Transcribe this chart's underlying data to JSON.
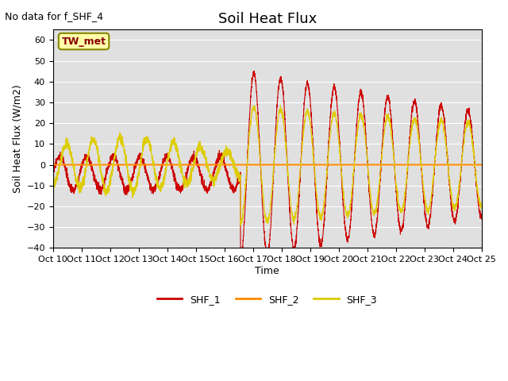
{
  "title": "Soil Heat Flux",
  "ylabel": "Soil Heat Flux (W/m2)",
  "xlabel": "Time",
  "annotation_text": "No data for f_SHF_4",
  "box_label": "TW_met",
  "ylim": [
    -40,
    65
  ],
  "yticks": [
    -40,
    -30,
    -20,
    -10,
    0,
    10,
    20,
    30,
    40,
    50,
    60
  ],
  "xlim": [
    0,
    240
  ],
  "xtick_labels": [
    "Oct 10",
    "Oct 11",
    "Oct 12",
    "Oct 13",
    "Oct 14",
    "Oct 15",
    "Oct 16",
    "Oct 17",
    "Oct 18",
    "Oct 19",
    "Oct 20",
    "Oct 21",
    "Oct 22",
    "Oct 23",
    "Oct 24",
    "Oct 25"
  ],
  "color_shf1": "#cc0000",
  "color_shf2": "#ff8800",
  "color_shf3": "#ddcc00",
  "bg_color": "#e0e0e0",
  "legend_labels": [
    "SHF_1",
    "SHF_2",
    "SHF_3"
  ],
  "title_fontsize": 13,
  "label_fontsize": 9,
  "tick_fontsize": 8
}
